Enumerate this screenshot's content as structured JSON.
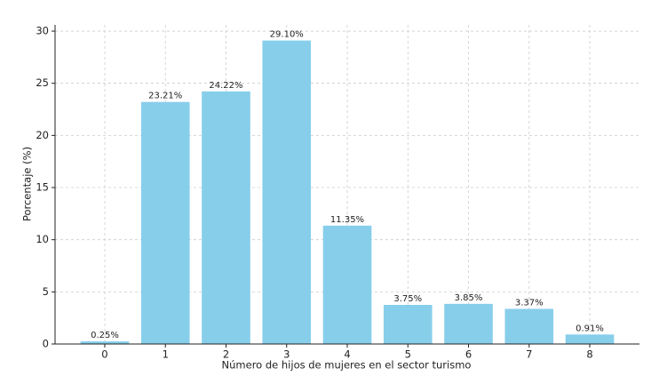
{
  "chart_data": {
    "type": "bar",
    "categories": [
      "0",
      "1",
      "2",
      "3",
      "4",
      "5",
      "6",
      "7",
      "8"
    ],
    "values": [
      0.25,
      23.21,
      24.22,
      29.1,
      11.35,
      3.75,
      3.85,
      3.37,
      0.91
    ],
    "value_labels": [
      "0.25%",
      "23.21%",
      "24.22%",
      "29.10%",
      "11.35%",
      "3.75%",
      "3.85%",
      "3.37%",
      "0.91%"
    ],
    "color": "#87ceeb",
    "xlabel": "Número de hijos de mujeres en el sector turismo",
    "ylabel": "Porcentaje (%)",
    "ylim": [
      0,
      30.6
    ],
    "yticks": [
      0,
      5,
      10,
      15,
      20,
      25,
      30
    ],
    "grid": true
  }
}
